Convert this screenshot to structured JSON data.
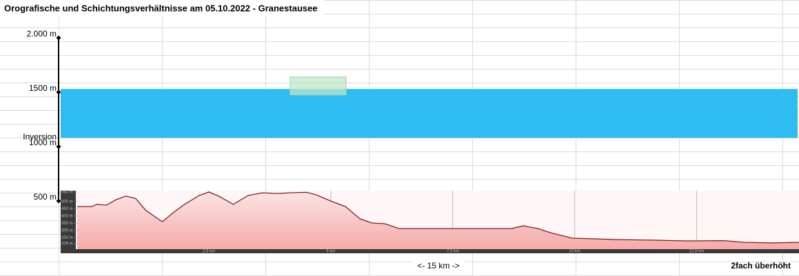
{
  "chart_data": [
    {
      "type": "layers",
      "title": "Orografische und Schichtungsverhältnisse am 05.10.2022 - Granestausee",
      "ylim": [
        500,
        2000
      ],
      "yticks": [
        {
          "value": 2000,
          "label": "2.000 m"
        },
        {
          "value": 1500,
          "label": "1500 m"
        },
        {
          "value": 1000,
          "label": "1000 m"
        },
        {
          "value": 500,
          "label": "500 m"
        }
      ],
      "xlim": [
        -0.5,
        14.6
      ],
      "series": [
        {
          "name": "Inversion",
          "color": "#2fbcf0",
          "values": [
            1080,
            1530
          ]
        },
        {
          "color": "#bfe6c9",
          "x": [
            4.2,
            5.35
          ],
          "values": [
            1475,
            1641
          ]
        }
      ]
    },
    {
      "type": "area",
      "x": [
        -0.2,
        0.1,
        0.2,
        0.4,
        0.6,
        0.8,
        1.0,
        1.2,
        1.5,
        1.55,
        1.75,
        2.0,
        2.3,
        2.5,
        2.7,
        3.0,
        3.3,
        3.6,
        3.9,
        4.15,
        4.5,
        4.7,
        5.0,
        5.3,
        5.6,
        5.85,
        6.1,
        6.4,
        6.7,
        8.7,
        8.95,
        9.25,
        9.5,
        9.95,
        10.4,
        10.9,
        11.6,
        12.3,
        13.05,
        13.5,
        14.05,
        14.6
      ],
      "values": [
        465,
        465,
        480,
        475,
        513,
        537,
        520,
        441,
        370,
        361,
        418,
        480,
        541,
        565,
        537,
        480,
        541,
        560,
        555,
        560,
        563,
        546,
        503,
        465,
        380,
        351,
        347,
        313,
        313,
        313,
        332,
        313,
        285,
        247,
        242,
        237,
        233,
        228,
        230,
        218,
        214,
        218
      ],
      "xlim": [
        -0.2,
        14.6
      ],
      "ylim": [
        209,
        565
      ],
      "yticks": [
        {
          "value": 565,
          "label": "565 m"
        },
        {
          "value": 500,
          "label": "500 m"
        },
        {
          "value": 450,
          "label": "450 m"
        },
        {
          "value": 400,
          "label": "400 m"
        },
        {
          "value": 350,
          "label": "350 m"
        },
        {
          "value": 300,
          "label": "300 m"
        },
        {
          "value": 250,
          "label": "250 m"
        },
        {
          "value": 209,
          "label": "209 m"
        }
      ],
      "xticks": [
        {
          "value": 2.5,
          "label": "2.5 km"
        },
        {
          "value": 5,
          "label": "5 km"
        },
        {
          "value": 7.5,
          "label": "7.5 km"
        },
        {
          "value": 10,
          "label": "10 km"
        },
        {
          "value": 12.5,
          "label": "12.5 km"
        }
      ],
      "color": "#f6b3b3",
      "line_color": "#7a1f1f",
      "xlabel": "<- 15 km ->",
      "annotation": "2fach überhöht"
    }
  ]
}
